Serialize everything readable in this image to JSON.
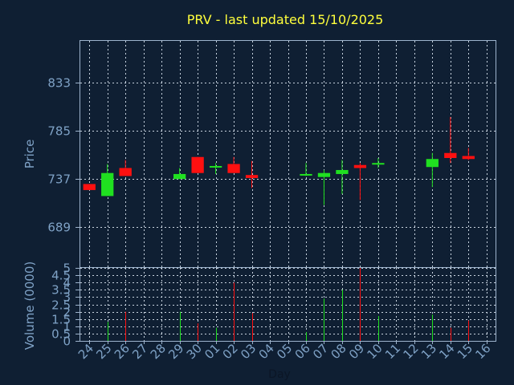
{
  "chart_data": [
    {
      "type": "candlestick",
      "title": "PRV - last updated 15/10/2025",
      "ylabel": "Price",
      "ylim": [
        649,
        875
      ],
      "y_ticks": [
        689,
        737,
        785,
        833
      ],
      "up_color": "#20e020",
      "down_color": "#ff1010",
      "grid": true,
      "candles": [
        {
          "x": "24",
          "open": 732,
          "high": 732,
          "low": 726,
          "close": 726
        },
        {
          "x": "25",
          "open": 720,
          "high": 752,
          "low": 720,
          "close": 743
        },
        {
          "x": "26",
          "open": 748,
          "high": 756,
          "low": 740,
          "close": 740
        },
        {
          "x": "29",
          "open": 737,
          "high": 748,
          "low": 737,
          "close": 742
        },
        {
          "x": "30",
          "open": 759,
          "high": 759,
          "low": 743,
          "close": 743
        },
        {
          "x": "01",
          "open": 749,
          "high": 753,
          "low": 742,
          "close": 750
        },
        {
          "x": "02",
          "open": 752,
          "high": 759,
          "low": 743,
          "close": 743
        },
        {
          "x": "03",
          "open": 741,
          "high": 755,
          "low": 728,
          "close": 738
        },
        {
          "x": "06",
          "open": 741,
          "high": 753,
          "low": 740,
          "close": 742
        },
        {
          "x": "07",
          "open": 739,
          "high": 746,
          "low": 711,
          "close": 743
        },
        {
          "x": "08",
          "open": 742,
          "high": 756,
          "low": 722,
          "close": 746
        },
        {
          "x": "09",
          "open": 751,
          "high": 753,
          "low": 716,
          "close": 748
        },
        {
          "x": "10",
          "open": 752,
          "high": 758,
          "low": 748,
          "close": 753
        },
        {
          "x": "13",
          "open": 749,
          "high": 763,
          "low": 729,
          "close": 757
        },
        {
          "x": "14",
          "open": 763,
          "high": 799,
          "low": 753,
          "close": 758
        },
        {
          "x": "15",
          "open": 760,
          "high": 768,
          "low": 756,
          "close": 757
        }
      ]
    },
    {
      "type": "bar",
      "ylabel": "Volume (0000)",
      "xlabel": "Day",
      "ylim": [
        0,
        5
      ],
      "y_ticks": [
        "0",
        "0.5",
        "1",
        "1.5",
        "2",
        "2.5",
        "3",
        "3.5",
        "4",
        "4.5",
        "5"
      ],
      "grid": true,
      "categories": [
        "24",
        "25",
        "26",
        "27",
        "28",
        "29",
        "30",
        "01",
        "02",
        "03",
        "04",
        "05",
        "06",
        "07",
        "08",
        "09",
        "10",
        "11",
        "12",
        "13",
        "14",
        "15",
        "16"
      ],
      "bars": [
        {
          "x": "25",
          "value": 1.3,
          "direction": "up"
        },
        {
          "x": "26",
          "value": 2.0,
          "direction": "down"
        },
        {
          "x": "29",
          "value": 2.0,
          "direction": "up"
        },
        {
          "x": "30",
          "value": 1.2,
          "direction": "down"
        },
        {
          "x": "01",
          "value": 0.9,
          "direction": "up"
        },
        {
          "x": "02",
          "value": 4.0,
          "direction": "down"
        },
        {
          "x": "03",
          "value": 1.9,
          "direction": "down"
        },
        {
          "x": "06",
          "value": 0.6,
          "direction": "up"
        },
        {
          "x": "07",
          "value": 2.9,
          "direction": "up"
        },
        {
          "x": "08",
          "value": 3.5,
          "direction": "up"
        },
        {
          "x": "09",
          "value": 5.0,
          "direction": "down"
        },
        {
          "x": "10",
          "value": 1.7,
          "direction": "up"
        },
        {
          "x": "13",
          "value": 1.8,
          "direction": "up"
        },
        {
          "x": "14",
          "value": 0.9,
          "direction": "down"
        },
        {
          "x": "15",
          "value": 1.4,
          "direction": "down"
        }
      ]
    }
  ]
}
